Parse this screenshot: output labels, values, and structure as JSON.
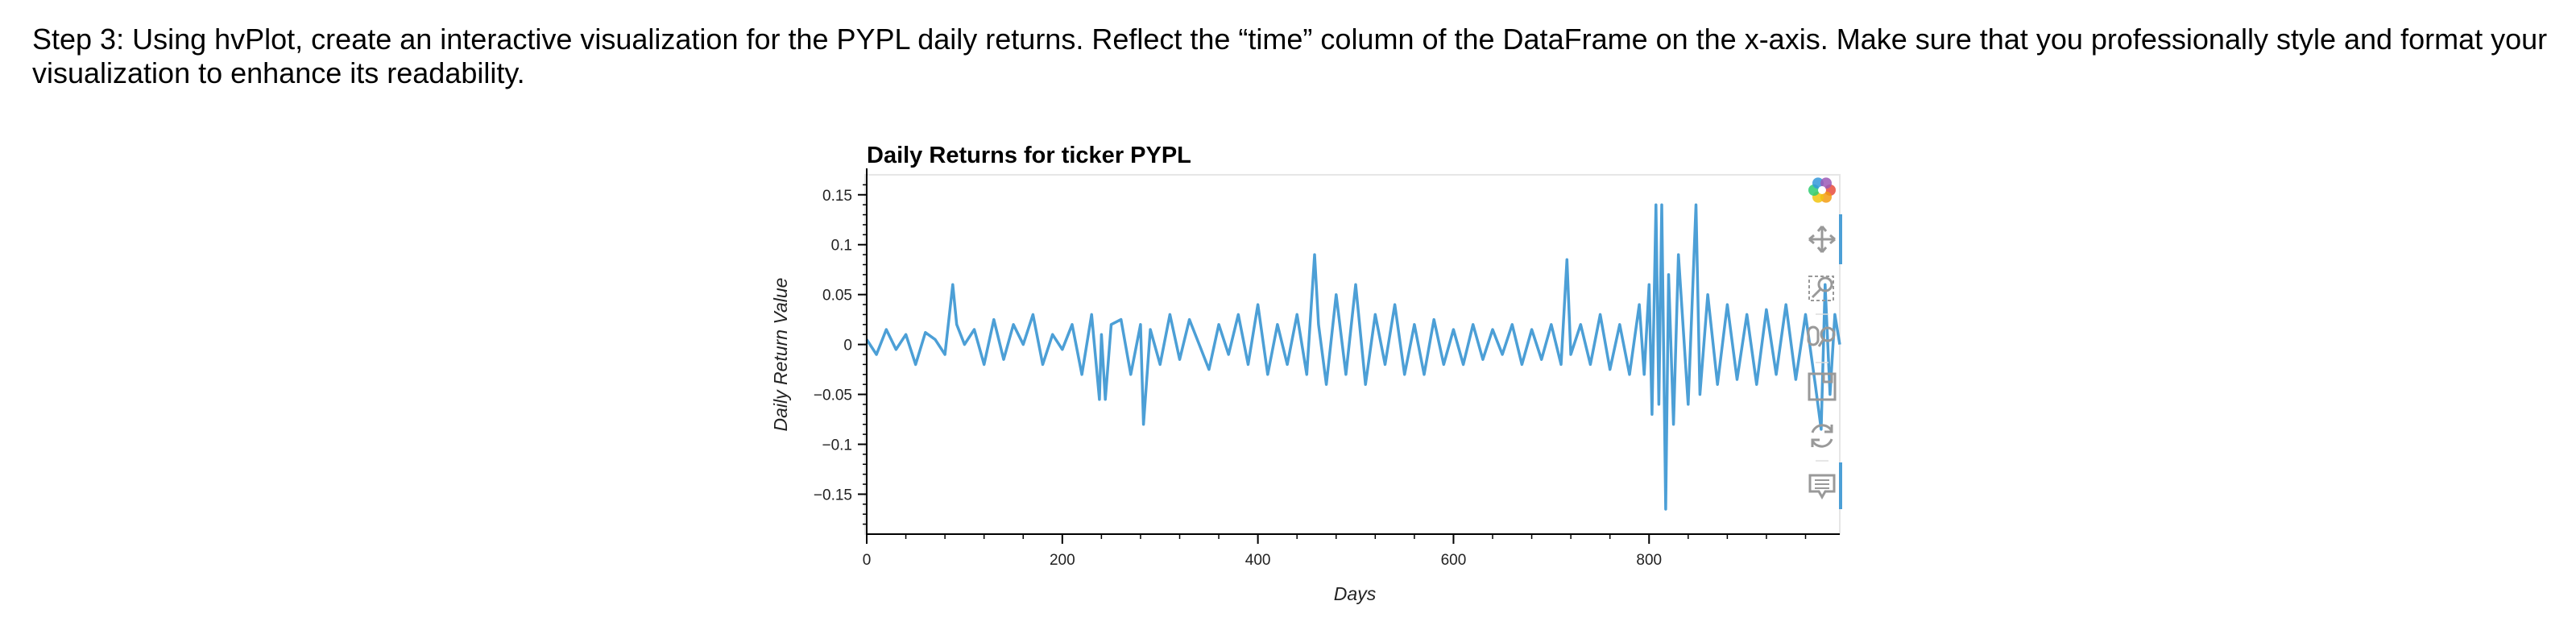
{
  "instructions": "Step 3: Using hvPlot, create an interactive visualization for the PYPL daily returns. Reflect the “time” column of the DataFrame on the x-axis. Make sure that you professionally style and format your visualization to enhance its readability.",
  "toolbar": {
    "tools": [
      "bokeh-logo-icon",
      "pan-icon",
      "box-zoom-icon",
      "wheel-zoom-icon",
      "save-icon",
      "reset-icon",
      "hover-icon"
    ]
  },
  "chart_data": {
    "type": "line",
    "title": "Daily Returns for ticker PYPL",
    "xlabel": "Days",
    "ylabel": "Daily Return Value",
    "xlim": [
      0,
      995
    ],
    "ylim": [
      -0.19,
      0.17
    ],
    "x_ticks": [
      0,
      200,
      400,
      600,
      800
    ],
    "x_tick_labels": [
      "0",
      "200",
      "400",
      "600",
      "800"
    ],
    "y_ticks": [
      0.15,
      0.1,
      0.05,
      0,
      -0.05,
      -0.1,
      -0.15
    ],
    "y_tick_labels": [
      "0.15",
      "0.1",
      "0.05",
      "0",
      "−0.05",
      "−0.1",
      "−0.15"
    ],
    "grid": false,
    "line_color": "#4c9fd6",
    "series": [
      {
        "x": [
          0,
          10,
          20,
          30,
          40,
          50,
          60,
          70,
          80,
          88,
          92,
          100,
          110,
          120,
          130,
          140,
          150,
          160,
          170,
          180,
          190,
          200,
          210,
          220,
          230,
          238,
          240,
          244,
          250,
          260,
          270,
          280,
          283,
          290,
          300,
          310,
          320,
          330,
          340,
          350,
          360,
          370,
          380,
          390,
          400,
          410,
          420,
          430,
          440,
          450,
          458,
          462,
          470,
          480,
          490,
          500,
          510,
          520,
          530,
          540,
          550,
          560,
          570,
          580,
          590,
          600,
          610,
          620,
          630,
          640,
          650,
          660,
          670,
          680,
          690,
          700,
          710,
          716,
          720,
          730,
          740,
          750,
          760,
          770,
          780,
          790,
          795,
          800,
          803,
          807,
          810,
          813,
          817,
          820,
          825,
          830,
          840,
          848,
          852,
          860,
          870,
          880,
          890,
          900,
          910,
          920,
          930,
          940,
          950,
          960,
          970,
          976,
          980,
          985,
          990,
          995
        ],
        "y": [
          0.005,
          -0.01,
          0.015,
          -0.005,
          0.01,
          -0.02,
          0.012,
          0.005,
          -0.01,
          0.06,
          0.02,
          0.0,
          0.015,
          -0.02,
          0.025,
          -0.015,
          0.02,
          0.0,
          0.03,
          -0.02,
          0.01,
          -0.005,
          0.02,
          -0.03,
          0.03,
          -0.055,
          0.01,
          -0.055,
          0.02,
          0.025,
          -0.03,
          0.02,
          -0.08,
          0.015,
          -0.02,
          0.03,
          -0.015,
          0.025,
          0.0,
          -0.025,
          0.02,
          -0.01,
          0.03,
          -0.02,
          0.04,
          -0.03,
          0.02,
          -0.02,
          0.03,
          -0.03,
          0.09,
          0.02,
          -0.04,
          0.05,
          -0.03,
          0.06,
          -0.04,
          0.03,
          -0.02,
          0.04,
          -0.03,
          0.02,
          -0.03,
          0.025,
          -0.02,
          0.015,
          -0.02,
          0.02,
          -0.015,
          0.015,
          -0.01,
          0.02,
          -0.02,
          0.015,
          -0.015,
          0.02,
          -0.02,
          0.085,
          -0.01,
          0.02,
          -0.02,
          0.03,
          -0.025,
          0.02,
          -0.03,
          0.04,
          -0.03,
          0.06,
          -0.07,
          0.14,
          -0.06,
          0.14,
          -0.165,
          0.07,
          -0.08,
          0.09,
          -0.06,
          0.14,
          -0.05,
          0.05,
          -0.04,
          0.04,
          -0.035,
          0.03,
          -0.04,
          0.035,
          -0.03,
          0.04,
          -0.035,
          0.03,
          -0.04,
          -0.085,
          0.06,
          -0.05,
          0.03,
          0.0
        ]
      }
    ]
  }
}
